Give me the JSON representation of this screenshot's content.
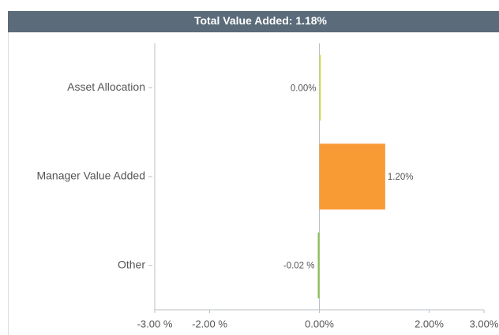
{
  "chart_data": {
    "type": "bar",
    "orientation": "horizontal",
    "title": "Total Value Added: 1.18%",
    "categories": [
      "Asset Allocation",
      "Manager Value Added",
      "Other"
    ],
    "values": [
      0.0,
      1.2,
      -0.02
    ],
    "value_labels": [
      "0.00%",
      "1.20%",
      "-0.02 %"
    ],
    "colors": [
      "#d4dc6a",
      "#f99b35",
      "#8bbf4a"
    ],
    "xlim": [
      -3,
      3
    ],
    "xticks": [
      {
        "value": -3,
        "label": "-3.00 %"
      },
      {
        "value": -2,
        "label": "-2.00 %"
      },
      {
        "value": 0,
        "label": "0.00%"
      },
      {
        "value": 2,
        "label": "2.00%"
      },
      {
        "value": 3,
        "label": "3.00%"
      }
    ]
  }
}
